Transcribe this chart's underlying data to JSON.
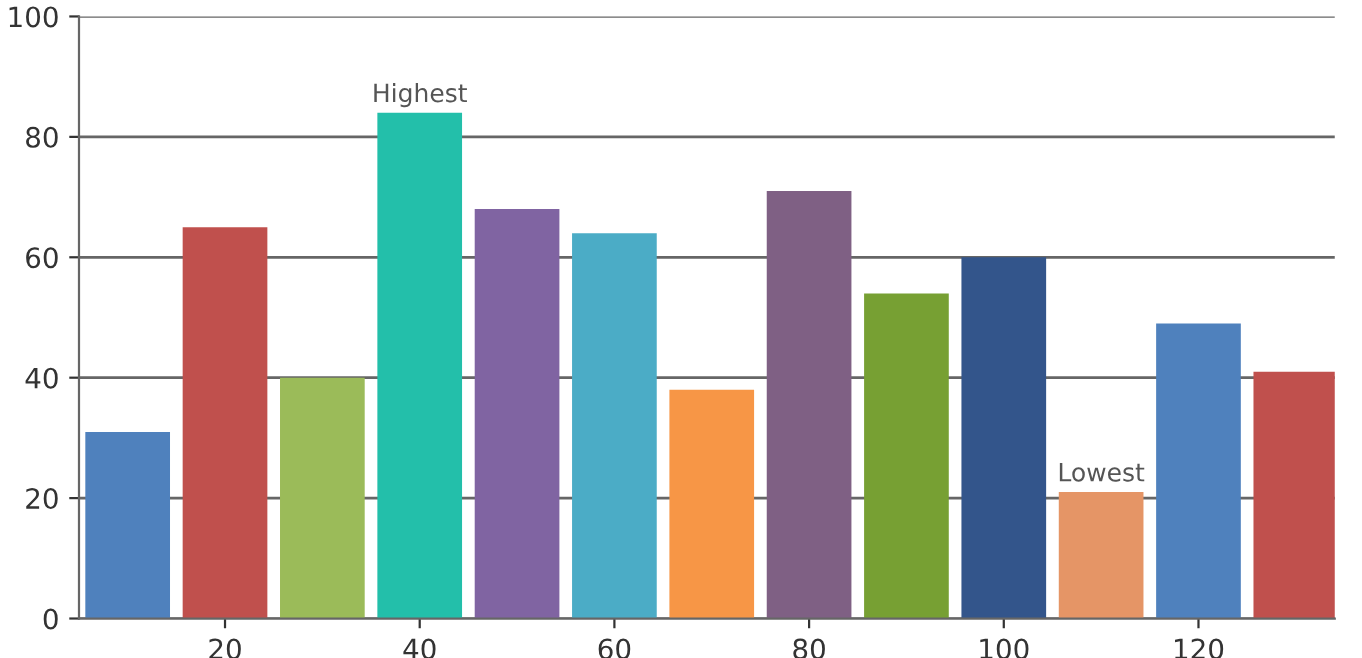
{
  "chart_data": {
    "type": "bar",
    "x": [
      10,
      20,
      30,
      40,
      50,
      60,
      70,
      80,
      90,
      100,
      110,
      120,
      130
    ],
    "values": [
      31,
      65,
      40,
      84,
      68,
      64,
      38,
      71,
      54,
      60,
      21,
      49,
      41
    ],
    "colors": [
      "#4f81bd",
      "#c0504d",
      "#9bbb59",
      "#23bfaa",
      "#8064a2",
      "#4bacc6",
      "#f79646",
      "#7f6084",
      "#77a033",
      "#33558b",
      "#e59566",
      "#4f81bd",
      "#c0504d"
    ],
    "xlim": [
      5,
      134
    ],
    "xticks": [
      20,
      40,
      60,
      80,
      100,
      120
    ],
    "ylim": [
      0,
      100
    ],
    "yticks": [
      0,
      20,
      40,
      60,
      80,
      100
    ],
    "grid": "y",
    "annotations": [
      {
        "text": "Highest",
        "x": 40,
        "y": 84
      },
      {
        "text": "Lowest",
        "x": 110,
        "y": 21
      }
    ]
  }
}
